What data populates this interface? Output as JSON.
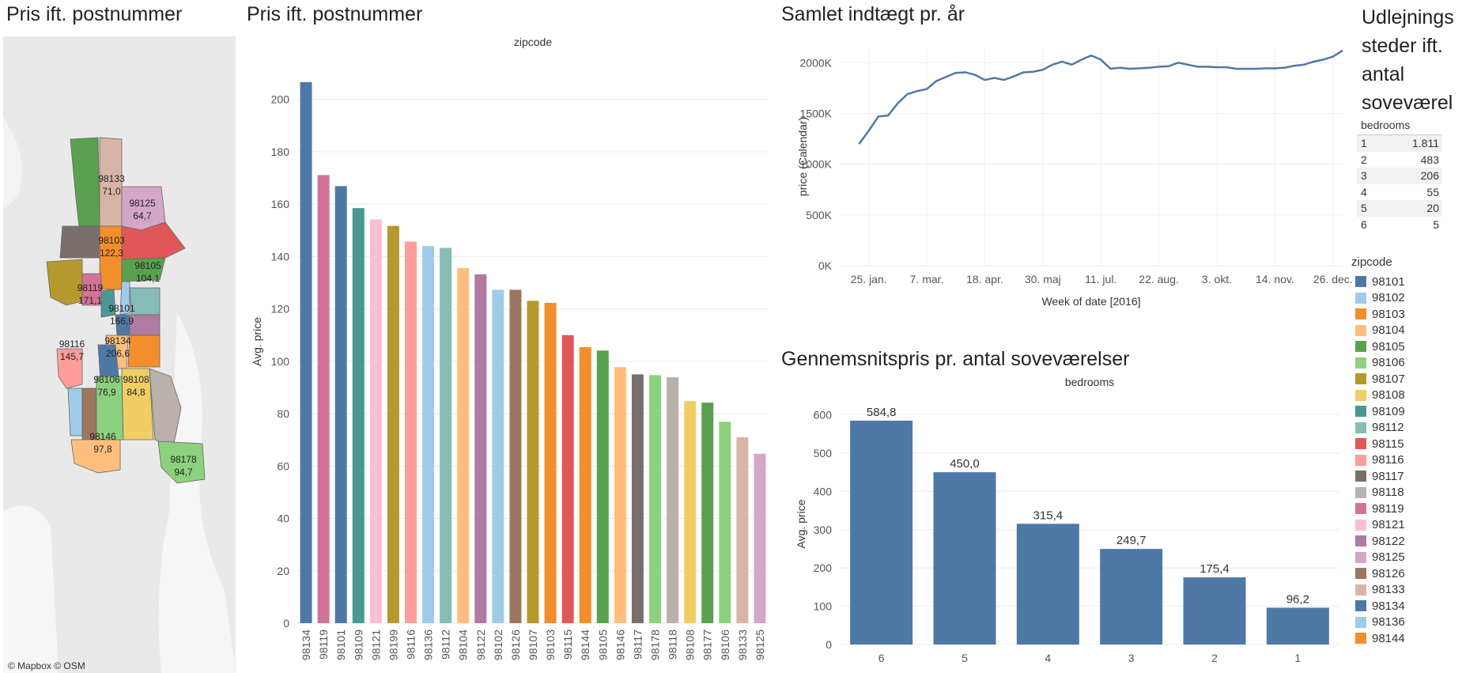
{
  "titles": {
    "map": "Pris ift. postnummer",
    "bars": "Pris ift. postnummer",
    "line": "Samlet indtægt pr. år",
    "table": "Udlejnings steder ift. antal soveværel",
    "bedroom_bars": "Gennemsnitspris pr. antal soveværelser"
  },
  "map": {
    "credit": "© Mapbox © OSM",
    "labels": [
      {
        "zip": "98133",
        "value": "71,0"
      },
      {
        "zip": "98125",
        "value": "64,7"
      },
      {
        "zip": "98103",
        "value": "122,3"
      },
      {
        "zip": "98105",
        "value": "104,1"
      },
      {
        "zip": "98119",
        "value": "171,1"
      },
      {
        "zip": "98101",
        "value": "166,9"
      },
      {
        "zip": "98116",
        "value": "145,7"
      },
      {
        "zip": "98134",
        "value": "206,6"
      },
      {
        "zip": "98106",
        "value": "76,9"
      },
      {
        "zip": "98108",
        "value": "84,8"
      },
      {
        "zip": "98146",
        "value": "97,8"
      },
      {
        "zip": "98178",
        "value": "94,7"
      }
    ]
  },
  "bedroom_table": {
    "header": "bedrooms",
    "rows": [
      {
        "bedrooms": "1",
        "count": "1.811"
      },
      {
        "bedrooms": "2",
        "count": "483"
      },
      {
        "bedrooms": "3",
        "count": "206"
      },
      {
        "bedrooms": "4",
        "count": "55"
      },
      {
        "bedrooms": "5",
        "count": "20"
      },
      {
        "bedrooms": "6",
        "count": "5"
      }
    ]
  },
  "legend": {
    "title": "zipcode",
    "items": [
      {
        "label": "98101",
        "color": "#4e79a7"
      },
      {
        "label": "98102",
        "color": "#a0cbe8"
      },
      {
        "label": "98103",
        "color": "#f28e2b"
      },
      {
        "label": "98104",
        "color": "#ffbe7d"
      },
      {
        "label": "98105",
        "color": "#59a14f"
      },
      {
        "label": "98106",
        "color": "#8cd17d"
      },
      {
        "label": "98107",
        "color": "#b6992d"
      },
      {
        "label": "98108",
        "color": "#f1ce63"
      },
      {
        "label": "98109",
        "color": "#499894"
      },
      {
        "label": "98112",
        "color": "#86bcb6"
      },
      {
        "label": "98115",
        "color": "#e15759"
      },
      {
        "label": "98116",
        "color": "#ff9d9a"
      },
      {
        "label": "98117",
        "color": "#79706e"
      },
      {
        "label": "98118",
        "color": "#bab0ac"
      },
      {
        "label": "98119",
        "color": "#d37295"
      },
      {
        "label": "98121",
        "color": "#fabfd2"
      },
      {
        "label": "98122",
        "color": "#b07aa1"
      },
      {
        "label": "98125",
        "color": "#d4a6c8"
      },
      {
        "label": "98126",
        "color": "#9d7660"
      },
      {
        "label": "98133",
        "color": "#d7b5a6"
      },
      {
        "label": "98134",
        "color": "#4e79a7"
      },
      {
        "label": "98136",
        "color": "#a0cbe8"
      },
      {
        "label": "98144",
        "color": "#f28e2b"
      }
    ]
  },
  "chart_data": [
    {
      "id": "zip-bars",
      "type": "bar",
      "title": "zipcode",
      "xlabel": "",
      "ylabel": "Avg. price",
      "ylim": [
        0,
        215
      ],
      "yticks": [
        0,
        20,
        40,
        60,
        80,
        100,
        120,
        140,
        160,
        180,
        200
      ],
      "grid": true,
      "categories": [
        "98134",
        "98119",
        "98101",
        "98109",
        "98121",
        "98199",
        "98116",
        "98136",
        "98112",
        "98104",
        "98122",
        "98102",
        "98126",
        "98107",
        "98103",
        "98115",
        "98144",
        "98105",
        "98146",
        "98117",
        "98178",
        "98118",
        "98108",
        "98177",
        "98106",
        "98133",
        "98125"
      ],
      "values": [
        206.6,
        171.1,
        166.9,
        158.5,
        154.2,
        151.7,
        145.7,
        144.0,
        143.3,
        135.6,
        133.2,
        127.3,
        127.3,
        123.1,
        122.3,
        110.0,
        105.4,
        104.1,
        97.8,
        95.0,
        94.7,
        93.9,
        84.8,
        84.2,
        76.9,
        71.0,
        64.7
      ],
      "colors": [
        "#4e79a7",
        "#d37295",
        "#4e79a7",
        "#499894",
        "#fabfd2",
        "#b6992d",
        "#ff9d9a",
        "#a0cbe8",
        "#86bcb6",
        "#ffbe7d",
        "#b07aa1",
        "#a0cbe8",
        "#9d7660",
        "#b6992d",
        "#f28e2b",
        "#e15759",
        "#f28e2b",
        "#59a14f",
        "#ffbe7d",
        "#79706e",
        "#8cd17d",
        "#bab0ac",
        "#f1ce63",
        "#59a14f",
        "#8cd17d",
        "#d7b5a6",
        "#d4a6c8"
      ]
    },
    {
      "id": "yearly-line",
      "type": "line",
      "title": "",
      "xlabel": "Week of date [2016]",
      "ylabel": "price (Calendar)",
      "ylim": [
        0,
        2150000
      ],
      "yticks": [
        0,
        500000,
        1000000,
        1500000,
        2000000
      ],
      "ytick_labels": [
        "0K",
        "500K",
        "1000K",
        "1500K",
        "2000K"
      ],
      "xticks": [
        {
          "week": 4,
          "label": "25. jan."
        },
        {
          "week": 10,
          "label": "7. mar."
        },
        {
          "week": 16,
          "label": "18. apr."
        },
        {
          "week": 22,
          "label": "30. maj"
        },
        {
          "week": 28,
          "label": "11. jul."
        },
        {
          "week": 34,
          "label": "22. aug."
        },
        {
          "week": 40,
          "label": "3. okt."
        },
        {
          "week": 46,
          "label": "14. nov."
        },
        {
          "week": 52,
          "label": "26. dec."
        }
      ],
      "xlim": [
        1,
        53
      ],
      "grid": true,
      "series": [
        {
          "values": [
            1200000,
            1330000,
            1470000,
            1480000,
            1600000,
            1690000,
            1720000,
            1740000,
            1820000,
            1860000,
            1900000,
            1905000,
            1880000,
            1830000,
            1850000,
            1830000,
            1865000,
            1905000,
            1910000,
            1930000,
            1980000,
            2010000,
            1980000,
            2030000,
            2070000,
            2030000,
            1940000,
            1950000,
            1940000,
            1945000,
            1950000,
            1960000,
            1965000,
            2000000,
            1980000,
            1960000,
            1960000,
            1955000,
            1955000,
            1940000,
            1940000,
            1940000,
            1945000,
            1945000,
            1950000,
            1970000,
            1980000,
            2010000,
            2030000,
            2060000,
            2120000
          ]
        }
      ],
      "color": "#4e79a7"
    },
    {
      "id": "bedroom-bars",
      "type": "bar",
      "title": "bedrooms",
      "xlabel": "",
      "ylabel": "Avg. price",
      "ylim": [
        0,
        630
      ],
      "yticks": [
        0,
        100,
        200,
        300,
        400,
        500,
        600
      ],
      "grid": true,
      "categories": [
        "6",
        "5",
        "4",
        "3",
        "2",
        "1"
      ],
      "values": [
        584.8,
        450.0,
        315.4,
        249.7,
        175.4,
        96.2
      ],
      "data_labels": [
        "584,8",
        "450,0",
        "315,4",
        "249,7",
        "175,4",
        "96,2"
      ],
      "color": "#4e79a7"
    }
  ]
}
